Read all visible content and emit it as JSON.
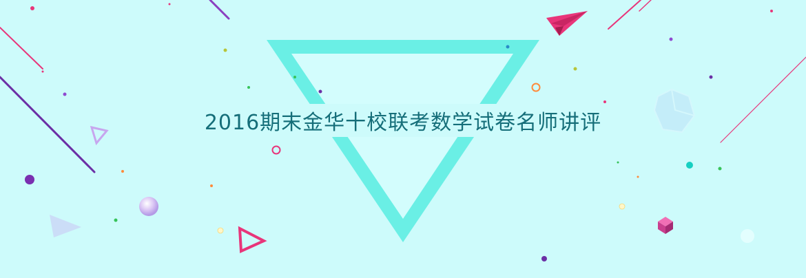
{
  "banner": {
    "title": "2016期末金华十校联考数学试卷名师讲评"
  },
  "colors": {
    "background": "#cdfbfb",
    "title_text": "#156e79",
    "triangle": "#6aefe5",
    "accent_pink": "#e8357a",
    "accent_purple": "#6b2fa5"
  },
  "decorations": {
    "icons": [
      "paper-plane-icon",
      "triangle-icon",
      "cube-icon",
      "sphere-icon",
      "polyhedron-icon"
    ]
  }
}
